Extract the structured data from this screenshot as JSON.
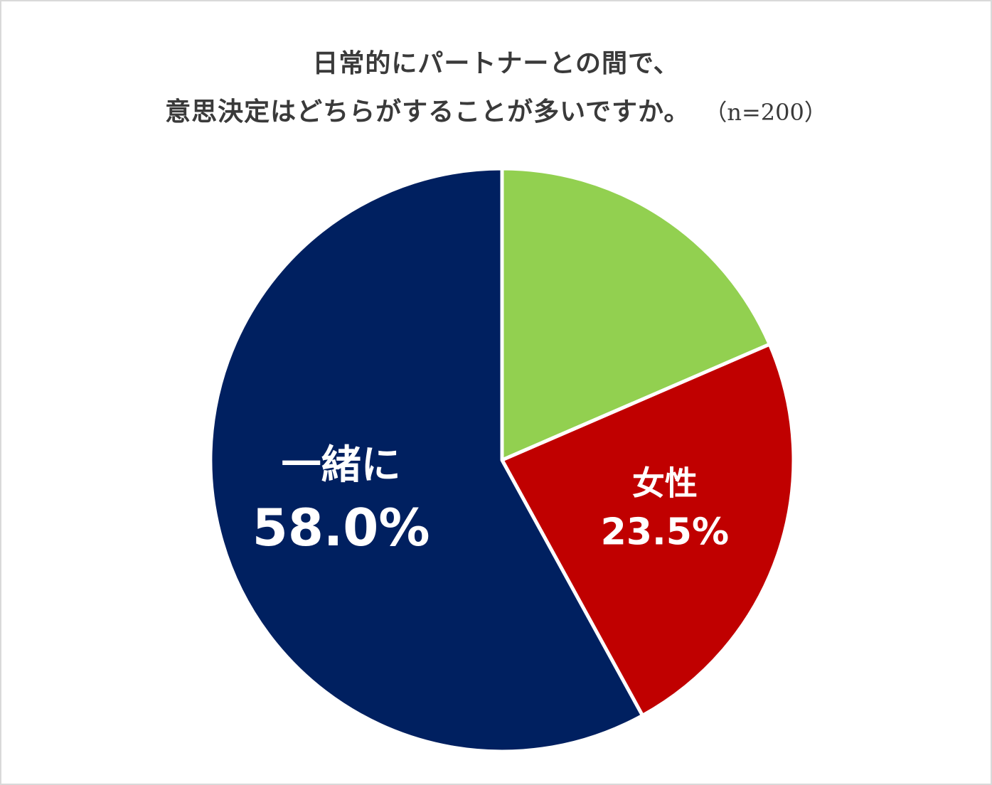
{
  "chart_data": {
    "type": "pie",
    "title_line1": "日常的にパートナーとの間で、",
    "title_line2": "意思決定はどちらがすることが多いですか。",
    "sample_size": "（n=200）",
    "start_angle_deg": 0,
    "slices": [
      {
        "label": "",
        "value": 18.5,
        "value_text": "",
        "color": "#92d050"
      },
      {
        "label": "女性",
        "value": 23.5,
        "value_text": "23.5%",
        "color": "#c00000"
      },
      {
        "label": "一緒に",
        "value": 58.0,
        "value_text": "58.0%",
        "color": "#002060"
      }
    ]
  }
}
